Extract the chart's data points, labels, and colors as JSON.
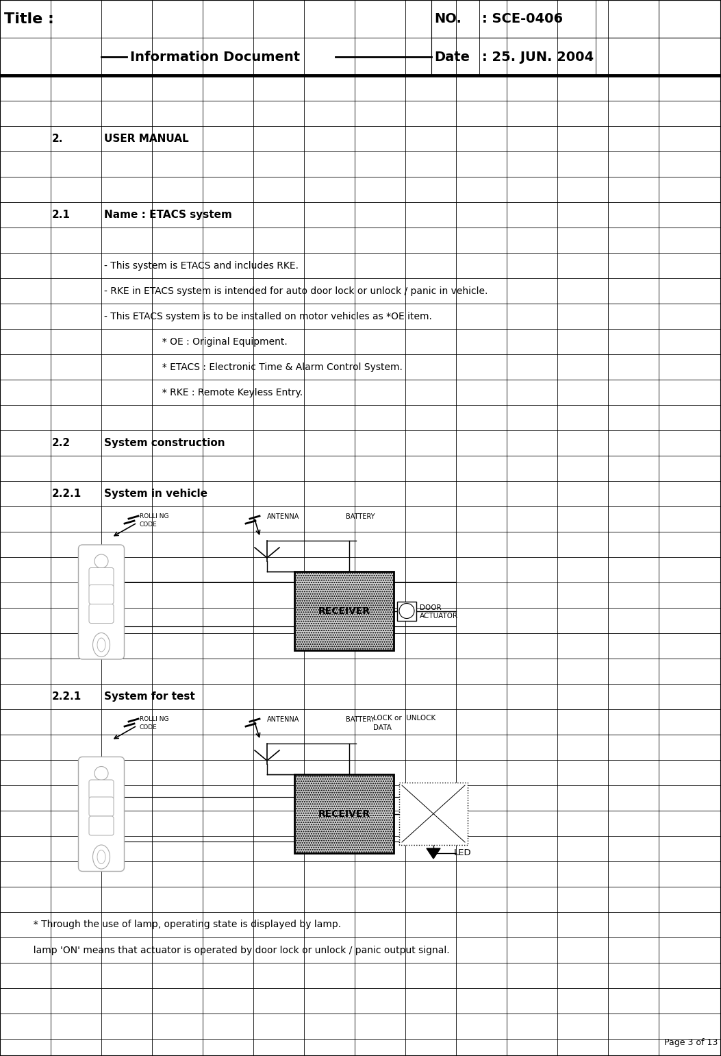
{
  "title_text": "Title :",
  "info_doc_text": "Information Document",
  "no_label": "NO.",
  "no_value": ": SCE-0406",
  "date_label": "Date",
  "date_value": ": 25. JUN. 2004",
  "s2": "2.",
  "s2_title": "USER MANUAL",
  "s21": "2.1",
  "s21_title": "Name : ETACS system",
  "b1": "- This system is ETACS and includes RKE.",
  "b2": "- RKE in ETACS system is intended for auto door lock or unlock / panic in vehicle.",
  "b3": "- This ETACS system is to be installed on motor vehicles as *OE item.",
  "n1": "  * OE : Original Equipment.",
  "n2": "  * ETACS : Electronic Time & Alarm Control System.",
  "n3": "  * RKE : Remote Keyless Entry.",
  "s22": "2.2",
  "s22_title": "System construction",
  "s221a": "2.2.1",
  "s221a_title": "System in vehicle",
  "s221b": "2.2.1",
  "s221b_title": "System for test",
  "f1": "  * Through the use of lamp, operating state is displayed by lamp.",
  "f2": "  lamp 'ON' means that actuator is operated by door lock or unlock / panic output signal.",
  "page": "Page 3 of 13",
  "rolling_code": "ROLLI NG\nCODE",
  "antenna_lbl": "ANTENNA",
  "battery_lbl": "BATTERY",
  "receiver_lbl": "RECEIVER",
  "door_lbl1": "DOOR",
  "door_lbl2": "ACTUATOR",
  "lock_lbl1": "LOCK or  UNLOCK",
  "lock_lbl2": "DATA",
  "led_lbl": "LED",
  "bg": "#ffffff"
}
